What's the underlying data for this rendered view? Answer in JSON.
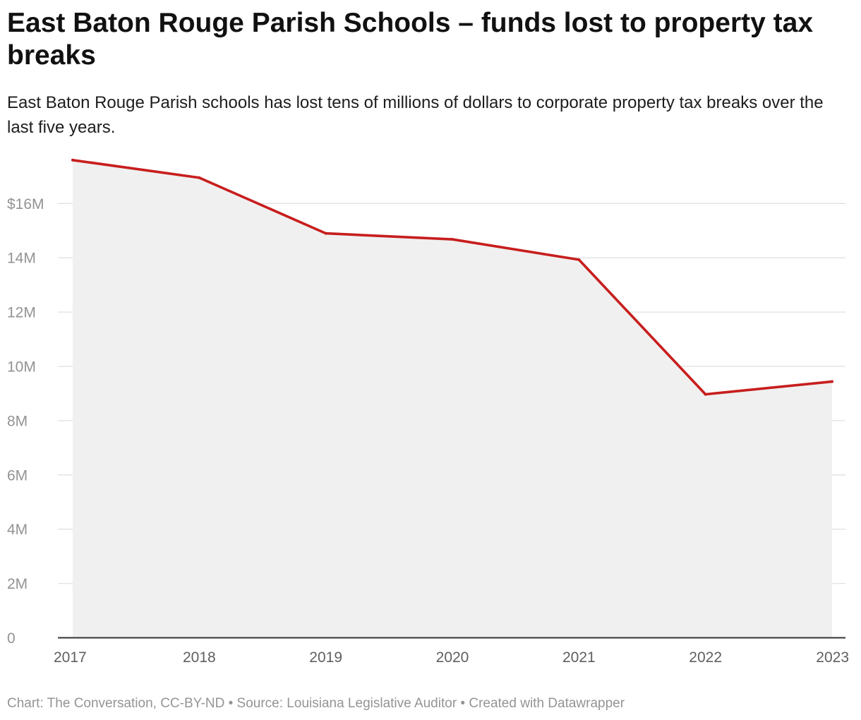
{
  "header": {
    "title": "East Baton Rouge Parish Schools – funds lost to property tax breaks",
    "subtitle": "East Baton Rouge Parish schools has lost tens of millions of dollars to corporate property tax breaks over the last five years."
  },
  "footer": {
    "credit": "Chart: The Conversation, CC-BY-ND • Source: Louisiana Legislative Auditor • Created with Datawrapper"
  },
  "colors": {
    "line": "#c71e1d",
    "area": "#f0f0f0",
    "grid": "#e1e1e1",
    "baseline": "#333333"
  },
  "chart_data": {
    "type": "area",
    "x": [
      "2017",
      "2018",
      "2019",
      "2020",
      "2021",
      "2022",
      "2023"
    ],
    "series": [
      {
        "values": [
          17.6,
          16.95,
          14.9,
          14.68,
          13.93,
          8.97,
          9.44
        ]
      }
    ],
    "unit": "million dollars",
    "ylim": [
      0,
      18
    ],
    "y_ticks": [
      {
        "value": 0,
        "label": "0"
      },
      {
        "value": 2,
        "label": "2M"
      },
      {
        "value": 4,
        "label": "4M"
      },
      {
        "value": 6,
        "label": "6M"
      },
      {
        "value": 8,
        "label": "8M"
      },
      {
        "value": 10,
        "label": "10M"
      },
      {
        "value": 12,
        "label": "12M"
      },
      {
        "value": 14,
        "label": "14M"
      },
      {
        "value": 16,
        "label": "$16M"
      }
    ],
    "grid": true,
    "legend": "none"
  }
}
